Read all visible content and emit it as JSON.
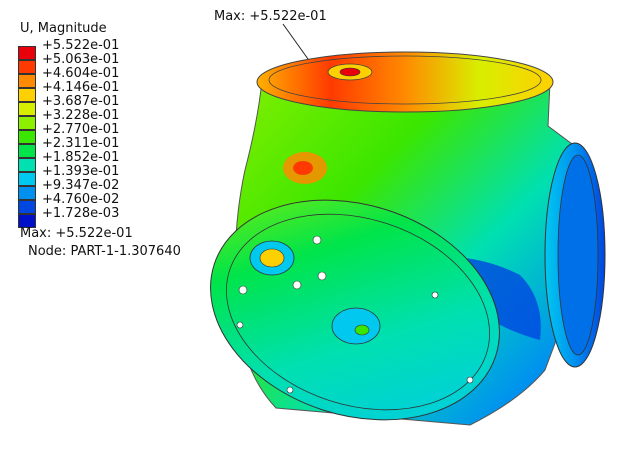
{
  "legend": {
    "title": "U, Magnitude",
    "entries": [
      {
        "label": "+5.522e-01",
        "color": "#e8000a"
      },
      {
        "label": "+5.063e-01",
        "color": "#ff3a00"
      },
      {
        "label": "+4.604e-01",
        "color": "#ff8a00"
      },
      {
        "label": "+4.146e-01",
        "color": "#ffd000"
      },
      {
        "label": "+3.687e-01",
        "color": "#d8ee00"
      },
      {
        "label": "+3.228e-01",
        "color": "#8cf000"
      },
      {
        "label": "+2.770e-01",
        "color": "#3be600"
      },
      {
        "label": "+2.311e-01",
        "color": "#00e44a"
      },
      {
        "label": "+1.852e-01",
        "color": "#00e0b0"
      },
      {
        "label": "+1.393e-01",
        "color": "#00c8ee"
      },
      {
        "label": "+9.347e-02",
        "color": "#0090f0"
      },
      {
        "label": "+4.760e-02",
        "color": "#0046e0"
      },
      {
        "label": "+1.728e-03",
        "color": "#0010c8"
      }
    ]
  },
  "summary": {
    "max": "Max: +5.522e-01",
    "node": "Node: PART-1-1.307640"
  },
  "annotation": {
    "max_label": "Max: +5.522e-01"
  }
}
